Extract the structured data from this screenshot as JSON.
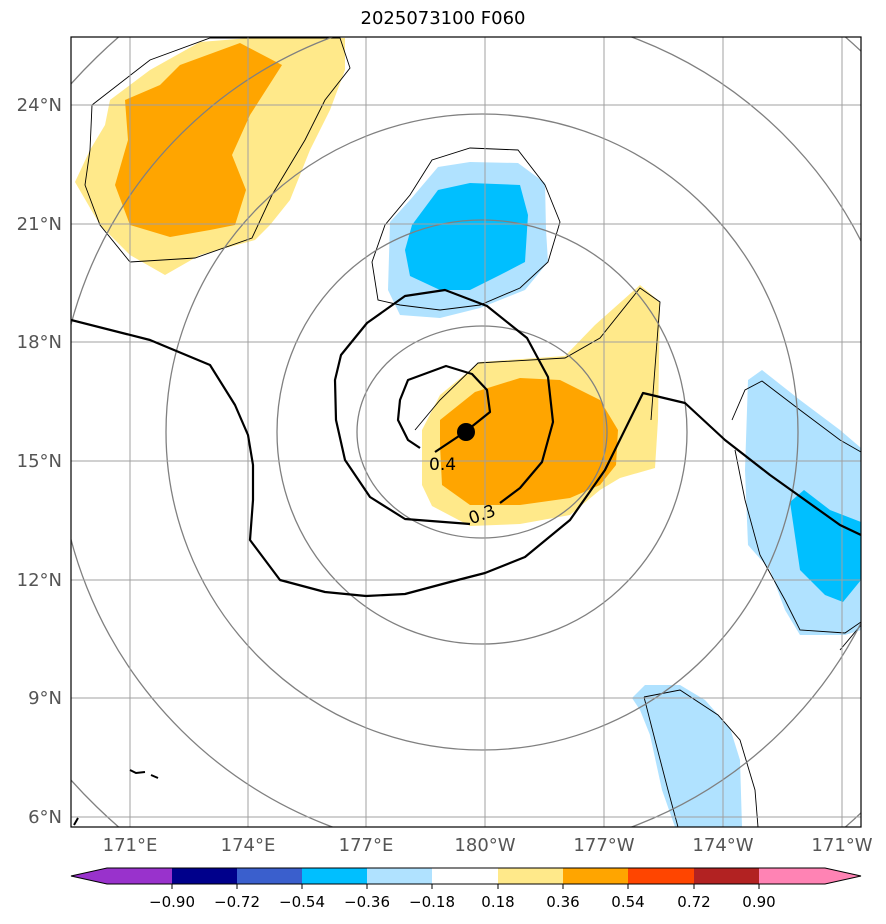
{
  "title": "2025073100 F060",
  "map": {
    "lat_ticks": [
      "24°N",
      "21°N",
      "18°N",
      "15°N",
      "12°N",
      "9°N",
      "6°N"
    ],
    "lon_ticks": [
      "171°E",
      "174°E",
      "177°E",
      "180°W",
      "177°W",
      "174°W",
      "171°W"
    ],
    "contour_labels": [
      "0.4",
      "0.3"
    ],
    "center_marker": "storm-center"
  },
  "colorbar": {
    "ticks": [
      "−0.90",
      "−0.72",
      "−0.54",
      "−0.36",
      "−0.18",
      "0.18",
      "0.36",
      "0.54",
      "0.72",
      "0.90"
    ],
    "colors": [
      "#9932cc",
      "#00008b",
      "#3a5fcd",
      "#00bfff",
      "#b0e2ff",
      "#ffffff",
      "#ffe98a",
      "#ffa500",
      "#ff4500",
      "#b22222",
      "#ff83b4"
    ]
  },
  "colors": {
    "grid": "#a0a0a0",
    "ring": "#808080",
    "light_blue": "#b0e2ff",
    "blue": "#00bfff",
    "light_yellow": "#ffe98a",
    "orange": "#ffa500"
  }
}
